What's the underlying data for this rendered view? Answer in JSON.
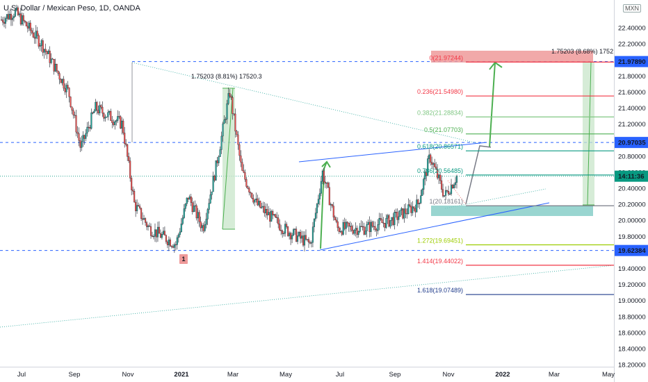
{
  "header": {
    "title": "U.S. Dollar / Mexican Peso, 1D, OANDA",
    "currency_badge": "MXN"
  },
  "chart_data": {
    "type": "candlestick",
    "symbol": "USD/MXN",
    "y_ticks": [
      "22.40000",
      "22.20000",
      "22.00000",
      "21.80000",
      "21.60000",
      "21.40000",
      "21.20000",
      "21.00000",
      "20.80000",
      "20.60000",
      "20.40000",
      "20.20000",
      "20.00000",
      "19.80000",
      "19.60000",
      "19.40000",
      "19.20000",
      "19.00000",
      "18.80000",
      "18.60000",
      "18.40000",
      "18.20000"
    ],
    "x_ticks": [
      "Jul",
      "Sep",
      "Nov",
      "2021",
      "Mar",
      "May",
      "Jul",
      "Sep",
      "Nov",
      "2022",
      "Mar",
      "May"
    ],
    "price_labels": [
      {
        "text": "21.97890",
        "value": 21.9789,
        "color": "#2962ff"
      },
      {
        "text": "20.97035",
        "value": 20.97035,
        "color": "#2962ff"
      },
      {
        "text": "14:11:36",
        "value": 20.55,
        "color": "#089981"
      },
      {
        "text": "19.62384",
        "value": 19.62384,
        "color": "#2962ff"
      }
    ],
    "horizontal_lines": [
      21.9789,
      20.97035,
      19.62384
    ],
    "current_price": 20.55,
    "fib_levels": [
      {
        "label": "0(21.97244)",
        "value": 21.97244,
        "color": "#f23645"
      },
      {
        "label": "0.236(21.54980)",
        "value": 21.5498,
        "color": "#f23645"
      },
      {
        "label": "0.382(21.28834)",
        "value": 21.28834,
        "color": "#81c784"
      },
      {
        "label": "0.5(21.07703)",
        "value": 21.07703,
        "color": "#4caf50"
      },
      {
        "label": "0.618(20.86571)",
        "value": 20.86571,
        "color": "#089981"
      },
      {
        "label": "0.786(20.56485)",
        "value": 20.56485,
        "color": "#089981"
      },
      {
        "label": "1(20.18161)",
        "value": 20.18161,
        "color": "#787b86"
      },
      {
        "label": "1.272(19.69451)",
        "value": 19.69451,
        "color": "#9ccc00"
      },
      {
        "label": "1.414(19.44022)",
        "value": 19.44022,
        "color": "#f23645"
      },
      {
        "label": "1.618(19.07489)",
        "value": 19.07489,
        "color": "#1e3a8a"
      }
    ],
    "annotations": [
      {
        "text": "1.75203 (8.81%) 17520.3"
      },
      {
        "text": "1.75203 (8.68%) 1752"
      },
      {
        "text": "1"
      }
    ],
    "series_close_path": [
      [
        "Jun 2020",
        22.5
      ],
      [
        "Jul 2020",
        22.6
      ],
      [
        "Aug 2020",
        22.2
      ],
      [
        "Sep 2020",
        21.6
      ],
      [
        "Sep 2020",
        20.9
      ],
      [
        "Oct 2020",
        21.4
      ],
      [
        "Nov 2020",
        21.2
      ],
      [
        "Nov 2020",
        20.2
      ],
      [
        "Dec 2020",
        19.9
      ],
      [
        "Jan 2021",
        19.7
      ],
      [
        "Jan 2021",
        20.3
      ],
      [
        "Feb 2021",
        19.9
      ],
      [
        "Feb 2021",
        20.6
      ],
      [
        "Mar 2021",
        21.6
      ],
      [
        "Mar 2021",
        20.6
      ],
      [
        "Apr 2021",
        20.2
      ],
      [
        "May 2021",
        19.9
      ],
      [
        "Jun 2021",
        19.7
      ],
      [
        "Jun 2021",
        20.6
      ],
      [
        "Jul 2021",
        19.9
      ],
      [
        "Aug 2021",
        19.9
      ],
      [
        "Sep 2021",
        20.0
      ],
      [
        "Oct 2021",
        20.2
      ],
      [
        "Oct 2021",
        20.8
      ],
      [
        "Nov 2021",
        20.3
      ],
      [
        "Nov 2021",
        20.55
      ]
    ],
    "ylim": [
      18.16,
      22.6
    ],
    "grid": false,
    "legend": "none"
  }
}
